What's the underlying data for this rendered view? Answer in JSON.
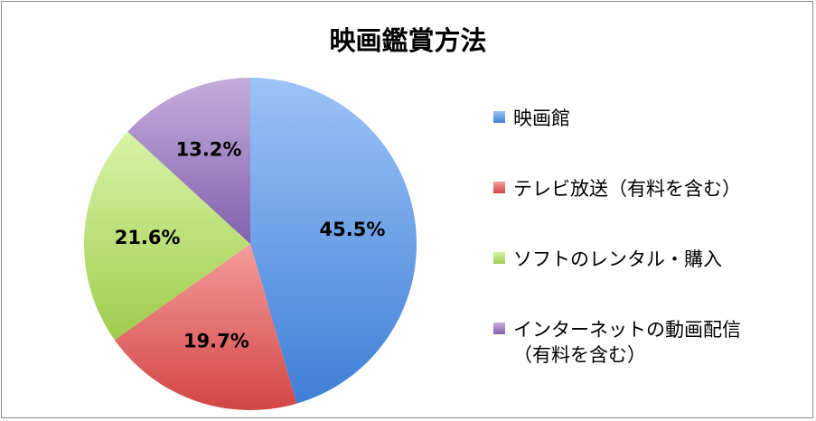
{
  "chart_data": {
    "type": "pie",
    "title": "映画鑑賞方法",
    "categories": [
      "映画館",
      "テレビ放送（有料を含む）",
      "ソフトのレンタル・購入",
      "インターネットの動画配信（有料を含む）"
    ],
    "values": [
      45.5,
      19.7,
      21.6,
      13.2
    ],
    "data_labels": [
      "45.5%",
      "19.7%",
      "21.6%",
      "13.2%"
    ],
    "legend": {
      "placement": "right",
      "entries": [
        [
          "映画館"
        ],
        [
          "テレビ放送（有料を含む）"
        ],
        [
          "ソフトのレンタル・購入"
        ],
        [
          "インターネットの動画配信",
          "（有料を含む）"
        ]
      ]
    },
    "colors": [
      {
        "light": "#9dc3f7",
        "dark": "#3f7fd6"
      },
      {
        "light": "#f59c9c",
        "dark": "#d24545"
      },
      {
        "light": "#d8f4a6",
        "dark": "#9fcc4e"
      },
      {
        "light": "#c4addb",
        "dark": "#8261ae"
      }
    ]
  }
}
